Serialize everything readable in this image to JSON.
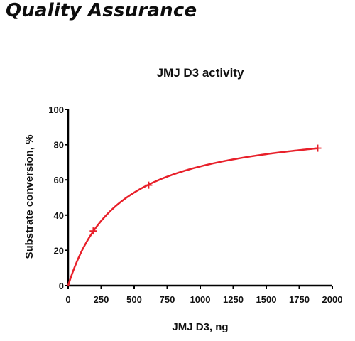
{
  "heading": "Quality Assurance",
  "chart_data": {
    "type": "line",
    "title": "JMJ D3 activity",
    "xlabel": "JMJ D3, ng",
    "ylabel": "Substrate conversion, %",
    "xlim": [
      0,
      2000
    ],
    "ylim": [
      0,
      100
    ],
    "x_ticks": [
      0,
      250,
      500,
      750,
      1000,
      1250,
      1500,
      1750,
      2000
    ],
    "y_ticks": [
      0,
      20,
      40,
      60,
      80,
      100
    ],
    "series": [
      {
        "x": [
          0,
          190,
          610,
          1890
        ],
        "y": [
          0,
          31,
          57,
          78
        ],
        "color": "#e8202a",
        "marker": "plus",
        "fit": "saturation curve"
      }
    ],
    "grid": false,
    "legend": "none"
  }
}
